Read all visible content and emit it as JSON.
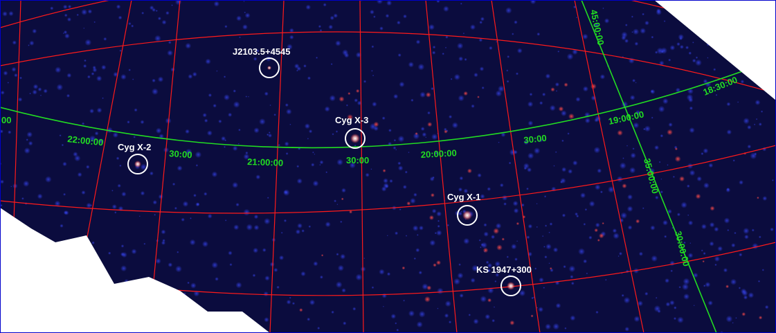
{
  "sources": [
    {
      "name": "J2103.5+4545",
      "brightness": "faint"
    },
    {
      "name": "Cyg X-3",
      "brightness": "bright"
    },
    {
      "name": "Cyg X-2",
      "brightness": "medium"
    },
    {
      "name": "Cyg X-1",
      "brightness": "bright"
    },
    {
      "name": "KS 1947+300",
      "brightness": "bright"
    }
  ],
  "ra_labels": [
    "22:00:00",
    "30:00",
    "21:00:00",
    "30:00",
    "20:00:00",
    "30:00",
    "19:00:00",
    "18:30:00"
  ],
  "dec_labels": [
    "45:00:00",
    "35:00:00",
    "30:00:00"
  ],
  "edge_label": "00",
  "colors": {
    "background": "#0b0c3e",
    "grid": "#ff1a1a",
    "ecliptic": "#22dd22",
    "coord_text": "#22dd22",
    "source_text": "#ffffff",
    "source_ring": "#ffffff",
    "frame": "#0000cc"
  }
}
